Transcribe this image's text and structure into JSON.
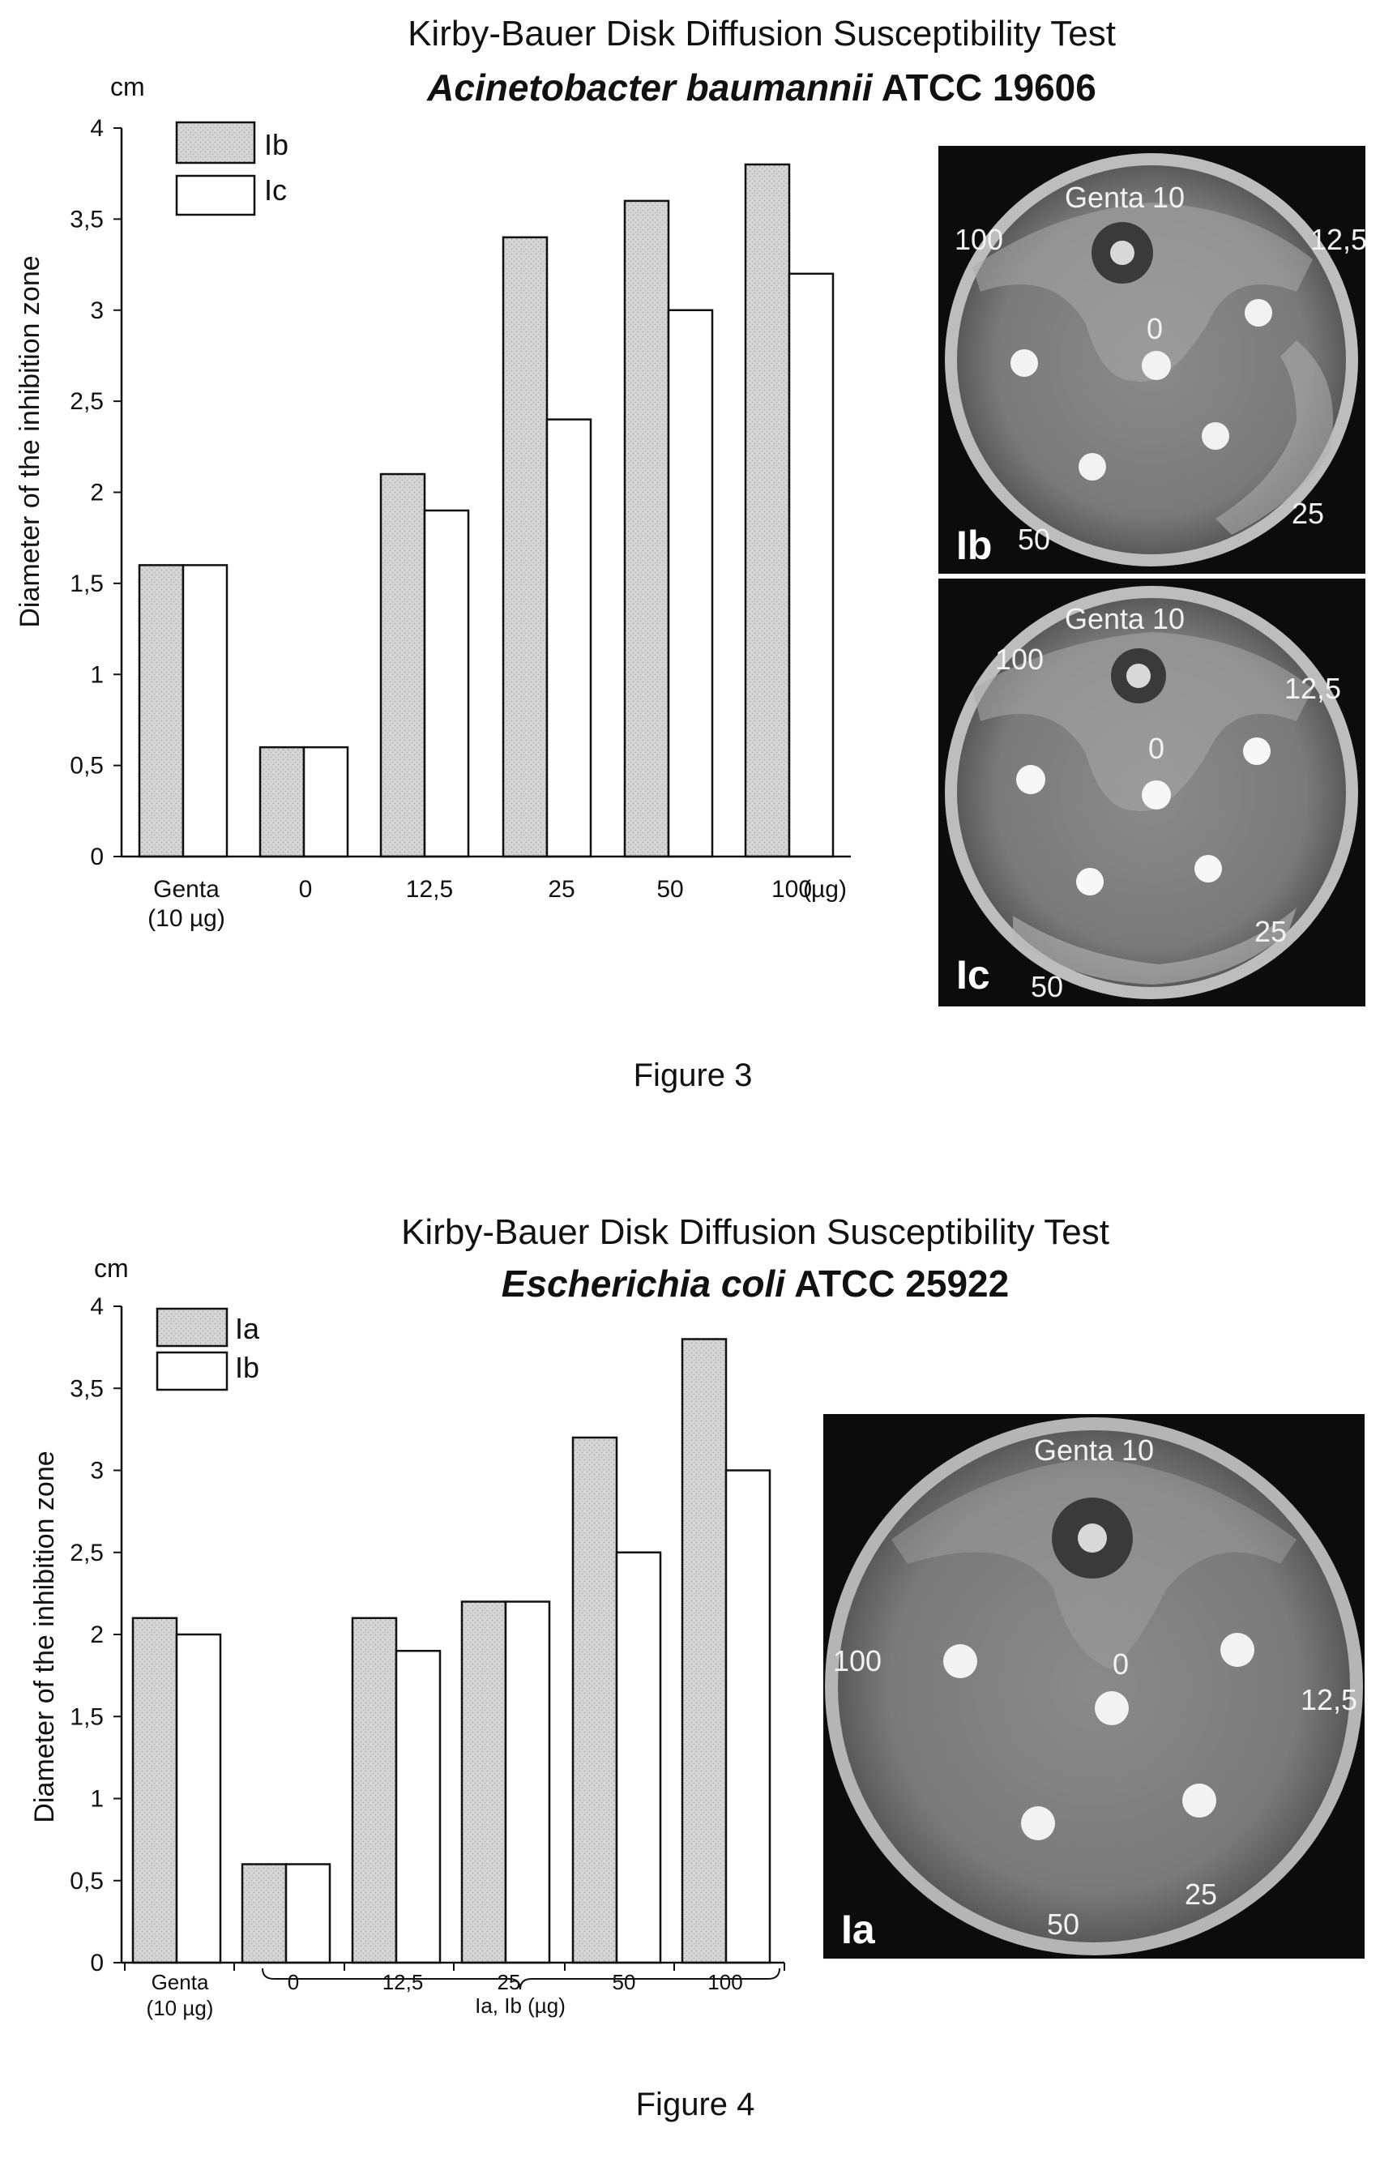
{
  "chart_data": [
    {
      "type": "bar",
      "title_line1": "Kirby-Bauer Disk Diffusion Susceptibility Test",
      "title_bold": "Acinetobacter baumannii",
      "title_rest": " ATCC 19606",
      "unit": "cm",
      "ylabel": "Diameter of the inhibition zone",
      "ylim": [
        0,
        4
      ],
      "yticks": [
        "0",
        "0,5",
        "1",
        "1,5",
        "2",
        "2,5",
        "3",
        "3,5",
        "4"
      ],
      "categories": [
        "Genta",
        "0",
        "12,5",
        "25",
        "50",
        "100"
      ],
      "category_sub": "(10 µg)",
      "x_unit": "(µg)",
      "legend_placement": "top-left",
      "series": [
        {
          "name": "Ib",
          "color": "#d3d3d3",
          "values": [
            1.6,
            0.6,
            2.1,
            3.4,
            3.6,
            3.8
          ]
        },
        {
          "name": "Ic",
          "color": "#ffffff",
          "values": [
            1.6,
            0.6,
            1.9,
            2.4,
            3.0,
            3.2
          ]
        }
      ],
      "plates": [
        {
          "id": "Ib",
          "labels": {
            "top": "Genta 10",
            "left": "100",
            "right": "12,5",
            "center": "0",
            "bottom_right": "25",
            "bottom": "50"
          }
        },
        {
          "id": "Ic",
          "labels": {
            "top": "Genta 10",
            "left": "100",
            "right": "12,5",
            "center": "0",
            "bottom_right": "25",
            "bottom": "50"
          }
        }
      ]
    },
    {
      "type": "bar",
      "title_line1": "Kirby-Bauer Disk Diffusion Susceptibility Test",
      "title_bold": "Escherichia coli",
      "title_rest": " ATCC 25922",
      "unit": "cm",
      "ylabel": "Diameter of the inhibition zone",
      "ylim": [
        0,
        4
      ],
      "yticks": [
        "0",
        "0,5",
        "1",
        "1,5",
        "2",
        "2,5",
        "3",
        "3,5",
        "4"
      ],
      "categories": [
        "Genta",
        "0",
        "12,5",
        "25",
        "50",
        "100"
      ],
      "category_sub": "(10 µg)",
      "group_label": "Ia, Ib (µg)",
      "legend_placement": "top-left",
      "series": [
        {
          "name": "Ia",
          "color": "#d3d3d3",
          "values": [
            2.1,
            0.6,
            2.1,
            2.2,
            3.2,
            3.8
          ]
        },
        {
          "name": "Ib",
          "color": "#ffffff",
          "values": [
            2.0,
            0.6,
            1.9,
            2.2,
            2.5,
            3.0
          ]
        }
      ],
      "plates": [
        {
          "id": "Ia",
          "labels": {
            "top": "Genta 10",
            "left": "100",
            "right": "12,5",
            "center": "0",
            "bottom_right": "25",
            "bottom": "50"
          }
        }
      ]
    }
  ],
  "figures": {
    "fig3": "Figure 3",
    "fig4": "Figure 4"
  }
}
